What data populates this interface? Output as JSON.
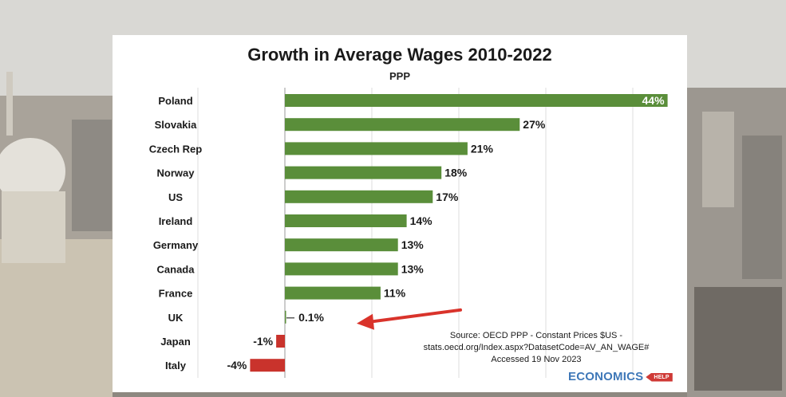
{
  "chart_data": {
    "type": "bar",
    "orientation": "horizontal",
    "title": "Growth in Average Wages 2010-2022",
    "subtitle": "PPP",
    "categories": [
      "Poland",
      "Slovakia",
      "Czech Rep",
      "Norway",
      "US",
      "Ireland",
      "Germany",
      "Canada",
      "France",
      "UK",
      "Japan",
      "Italy"
    ],
    "values": [
      44,
      27,
      21,
      18,
      17,
      14,
      13,
      13,
      11,
      0.1,
      -1,
      -4
    ],
    "labels": [
      "44%",
      "27%",
      "21%",
      "18%",
      "17%",
      "14%",
      "13%",
      "13%",
      "11%",
      "0.1%",
      "-1%",
      "-4%"
    ],
    "xlim": [
      -4.5,
      44.5
    ],
    "grid": true,
    "bar_color": "#5a8e3a",
    "negative_bar_color": "#c9332c",
    "annotation": {
      "type": "arrow",
      "target": "UK",
      "color": "#d9332b"
    }
  },
  "source": {
    "line1": "Source: OECD PPP - Constant Prices $US -",
    "line2": "stats.oecd.org/Index.aspx?DatasetCode=AV_AN_WAGE#",
    "line3": "Accessed 19 Nov 2023"
  },
  "logo": {
    "word": "ECONOMICS",
    "badge": "HELP"
  }
}
